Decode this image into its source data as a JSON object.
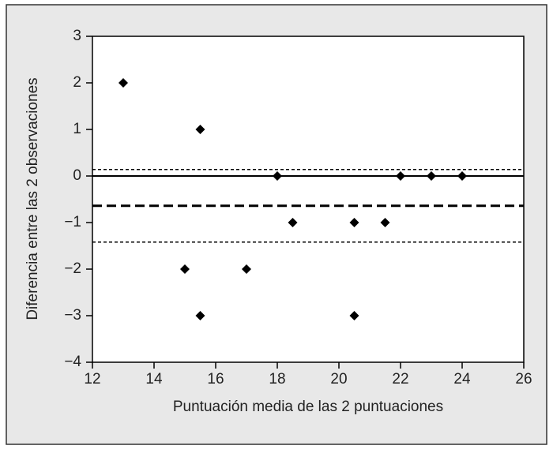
{
  "chart_data": {
    "type": "scatter",
    "xlabel": "Puntuación media de las 2 puntuaciones",
    "ylabel": "Diferencia entre las 2 observaciones",
    "x": [
      13,
      15.5,
      18,
      22,
      23,
      24,
      18.5,
      20.5,
      21.5,
      15,
      17,
      15.5,
      20.5
    ],
    "values": [
      2,
      1,
      0,
      0,
      0,
      0,
      -1,
      -1,
      -1,
      -2,
      -2,
      -3,
      -3
    ],
    "color": "#000000",
    "xlim": [
      12,
      26
    ],
    "xticks": [
      12,
      14,
      16,
      18,
      20,
      22,
      24,
      26
    ],
    "ylim": [
      -4,
      3
    ],
    "yticks": [
      {
        "value": -4,
        "label": "−4"
      },
      {
        "value": -3,
        "label": "−3"
      },
      {
        "value": -2,
        "label": "−2"
      },
      {
        "value": -1,
        "label": "−1"
      },
      0,
      1,
      2,
      3
    ],
    "reference_lines": [
      {
        "value": 0,
        "style": "solid"
      },
      {
        "value": 0.14,
        "style": "dotted"
      },
      {
        "value": -0.64,
        "style": "dashed"
      },
      {
        "value": -1.42,
        "style": "dotted"
      }
    ]
  }
}
